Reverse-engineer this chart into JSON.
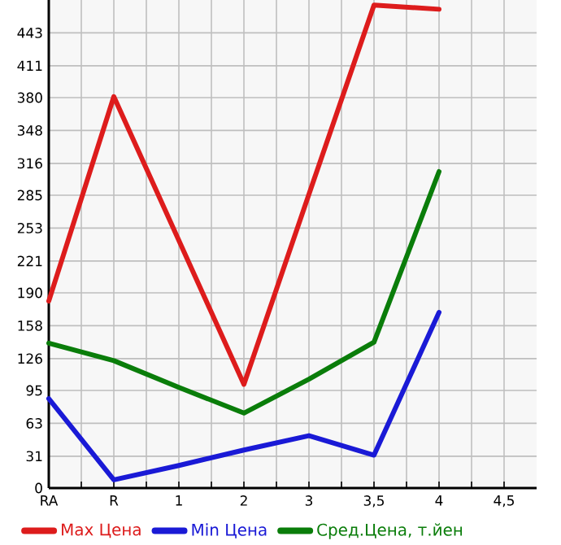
{
  "chart_data": {
    "type": "line",
    "categories": [
      "RA",
      "R",
      "1",
      "2",
      "3",
      "3,5",
      "4",
      "4,5"
    ],
    "series": [
      {
        "name": "Max Цена",
        "color": "#dd1c1c",
        "values": [
          182,
          381,
          241,
          101,
          286,
          470,
          466,
          null
        ]
      },
      {
        "name": "Min Цена",
        "color": "#1a1ad6",
        "values": [
          87,
          8,
          22,
          37,
          51,
          32,
          171,
          null
        ]
      },
      {
        "name": "Сред.Цена, т.йен",
        "color": "#0a7d0a",
        "values": [
          141,
          124,
          98,
          73,
          106,
          142,
          308,
          null
        ]
      }
    ],
    "ylim": [
      0,
      475
    ],
    "yticks": [
      0,
      31,
      63,
      95,
      126,
      158,
      190,
      221,
      253,
      285,
      316,
      348,
      380,
      411,
      443
    ],
    "grid": true,
    "legend": "bottom",
    "marker": "none",
    "line_style": "solid"
  }
}
